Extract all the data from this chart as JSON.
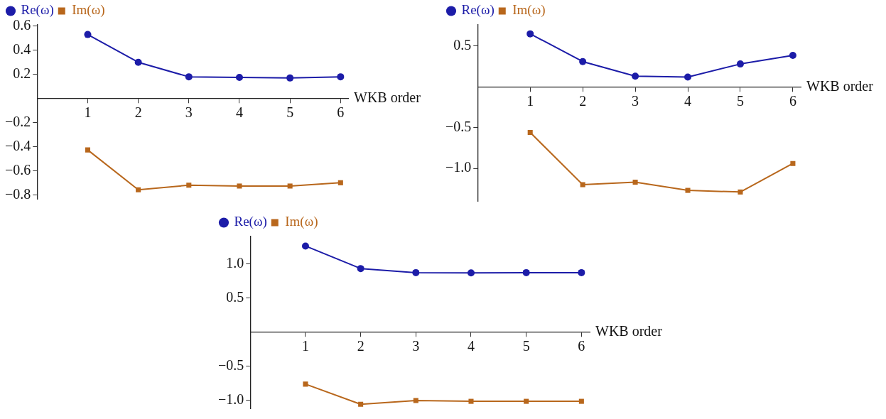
{
  "chart_data": [
    {
      "type": "line",
      "xlabel": "WKB order",
      "x": [
        1,
        2,
        3,
        4,
        5,
        6
      ],
      "xlim": [
        0,
        6.15
      ],
      "xticks": [
        1,
        2,
        3,
        4,
        5,
        6
      ],
      "ylim": [
        -0.83,
        0.61
      ],
      "yticks": [
        {
          "value": -0.8,
          "label": "−0.8"
        },
        {
          "value": -0.6,
          "label": "−0.6"
        },
        {
          "value": -0.4,
          "label": "−0.4"
        },
        {
          "value": -0.2,
          "label": "−0.2"
        },
        0.2,
        0.4,
        0.6
      ],
      "legend": "top left",
      "grid": false,
      "line_style": "solid",
      "series": [
        {
          "name": "Re(ω)",
          "color": "#1c1ca8",
          "marker": "circle",
          "values": [
            0.53,
            0.3,
            0.18,
            0.175,
            0.17,
            0.18
          ]
        },
        {
          "name": "Im(ω)",
          "color": "#b8671c",
          "marker": "square",
          "values": [
            -0.425,
            -0.755,
            -0.717,
            -0.724,
            -0.724,
            -0.697
          ]
        }
      ]
    },
    {
      "type": "line",
      "xlabel": "WKB order",
      "x": [
        1,
        2,
        3,
        4,
        5,
        6
      ],
      "xlim": [
        0,
        6.15
      ],
      "xticks": [
        1,
        2,
        3,
        4,
        5,
        6
      ],
      "ylim": [
        -1.4,
        0.76
      ],
      "yticks": [
        {
          "value": -1,
          "label": "−1.0"
        },
        {
          "value": -0.5,
          "label": "−0.5"
        },
        0.5
      ],
      "legend": "top left",
      "grid": false,
      "line_style": "solid",
      "series": [
        {
          "name": "Re(ω)",
          "color": "#1c1ca8",
          "marker": "circle",
          "values": [
            0.65,
            0.31,
            0.13,
            0.12,
            0.28,
            0.385
          ]
        },
        {
          "name": "Im(ω)",
          "color": "#b8671c",
          "marker": "square",
          "values": [
            -0.56,
            -1.2,
            -1.17,
            -1.27,
            -1.29,
            -0.94
          ]
        }
      ]
    },
    {
      "type": "line",
      "xlabel": "WKB order",
      "x": [
        1,
        2,
        3,
        4,
        5,
        6
      ],
      "xlim": [
        0,
        6.15
      ],
      "xticks": [
        1,
        2,
        3,
        4,
        5,
        6
      ],
      "ylim": [
        -1.12,
        1.4
      ],
      "yticks": [
        {
          "value": -1,
          "label": "−1.0"
        },
        {
          "value": -0.5,
          "label": "−0.5"
        },
        0.5,
        {
          "value": 1,
          "label": "1.0"
        }
      ],
      "legend": "top left",
      "grid": false,
      "line_style": "solid",
      "series": [
        {
          "name": "Re(ω)",
          "color": "#1c1ca8",
          "marker": "circle",
          "values": [
            1.26,
            0.93,
            0.87,
            0.866,
            0.87,
            0.87
          ]
        },
        {
          "name": "Im(ω)",
          "color": "#b8671c",
          "marker": "square",
          "values": [
            -0.765,
            -1.06,
            -1.005,
            -1.017,
            -1.017,
            -1.017
          ]
        }
      ]
    }
  ]
}
